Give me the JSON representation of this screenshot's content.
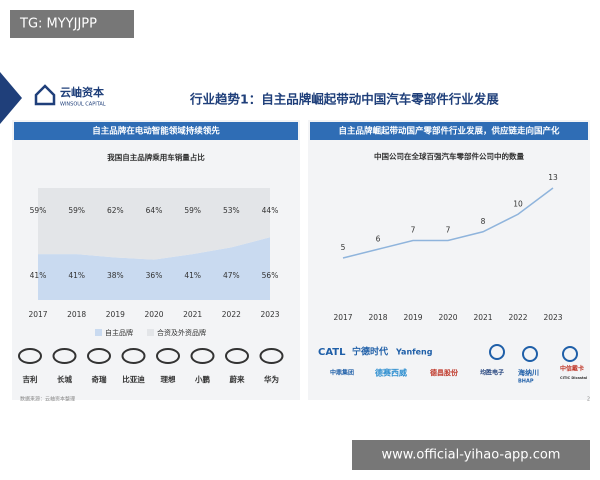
{
  "watermark_top": "TG: MYYJJPP",
  "watermark_bottom": "www.official-yihao-app.com",
  "logo": {
    "name": "云岫资本",
    "sub": "WINSOUL CAPITAL"
  },
  "title": "行业趋势1：自主品牌崛起带动中国汽车零部件行业发展",
  "left_header": "自主品牌在电动智能领域持续领先",
  "right_header": "自主品牌崛起带动国产零部件行业发展，供应链走向国产化",
  "chart_data": [
    {
      "type": "area",
      "stacked": true,
      "title": "我国自主品牌乘用车销量占比",
      "categories": [
        "2017",
        "2018",
        "2019",
        "2020",
        "2021",
        "2022",
        "2023"
      ],
      "series": [
        {
          "name": "自主品牌",
          "color": "#c9daf0",
          "values": [
            41,
            41,
            38,
            36,
            41,
            47,
            56
          ],
          "value_labels": [
            "41%",
            "41%",
            "38%",
            "36%",
            "41%",
            "47%",
            "56%"
          ]
        },
        {
          "name": "合资及外资品牌",
          "color": "#e3e5e8",
          "values": [
            59,
            59,
            62,
            64,
            59,
            53,
            44
          ],
          "value_labels": [
            "59%",
            "59%",
            "62%",
            "64%",
            "59%",
            "53%",
            "44%"
          ]
        }
      ]
    },
    {
      "type": "line",
      "title": "中国公司在全球百强汽车零部件公司中的数量",
      "categories": [
        "2017",
        "2018",
        "2019",
        "2020",
        "2021",
        "2022",
        "2023"
      ],
      "series": [
        {
          "color": "#8fb4dc",
          "values": [
            5,
            6,
            7,
            7,
            8,
            10,
            13
          ]
        }
      ]
    }
  ],
  "brands": [
    "吉利",
    "长城",
    "奇瑞",
    "比亚迪",
    "理想",
    "小鹏",
    "蔚来",
    "华为"
  ],
  "companies": [
    "CATL",
    "宁德时代",
    "Yanfeng",
    "中鼎集团",
    "德赛西威",
    "德昌股份",
    "均胜电子",
    "海纳川",
    "BHAP",
    "中信戴卡",
    "CITIC Dicastal"
  ],
  "footer": "数据来源：云岫资本整理",
  "page": "2"
}
